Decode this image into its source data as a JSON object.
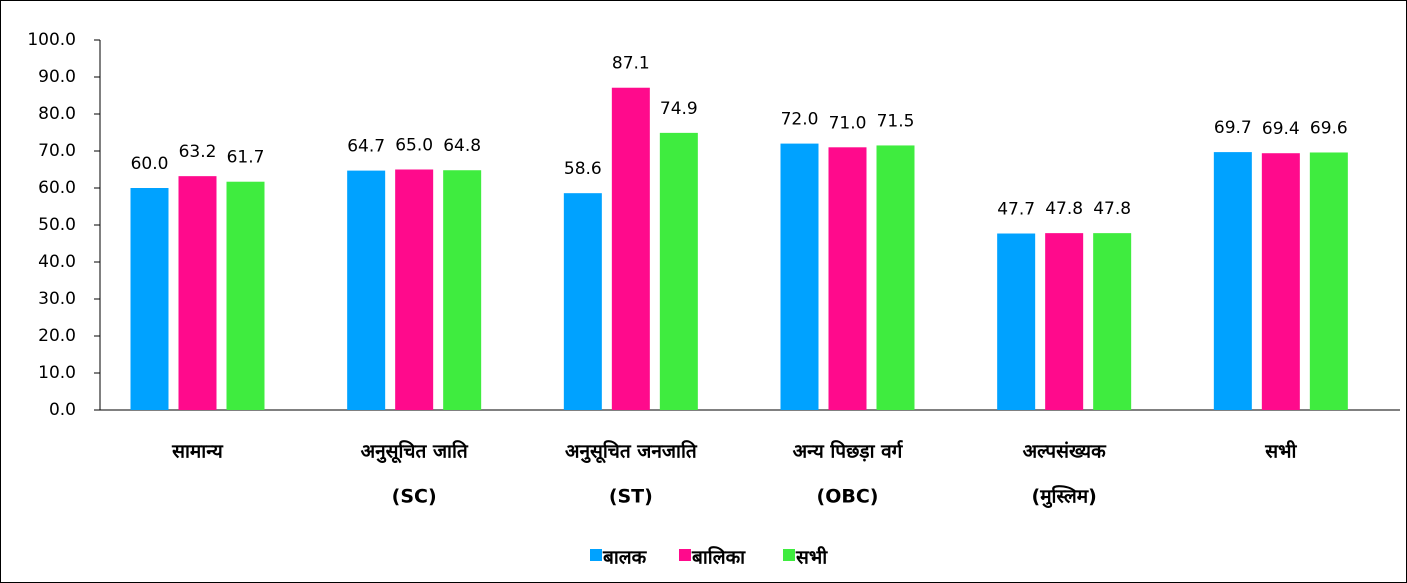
{
  "chart_data": {
    "type": "bar",
    "categories": [
      [
        "सामान्य"
      ],
      [
        "अनुसूचित जाति",
        "(SC)"
      ],
      [
        "अनुसूचित जनजाति",
        "(ST)"
      ],
      [
        "अन्य पिछड़ा वर्ग",
        "(OBC)"
      ],
      [
        "अल्पसंख्यक",
        "(मुस्लिम)"
      ],
      [
        "सभी"
      ]
    ],
    "series": [
      {
        "name": "बालक",
        "color": "#00a2ff",
        "values": [
          60.0,
          64.7,
          58.6,
          72.0,
          47.7,
          69.7
        ],
        "value_labels": [
          "60.0",
          "64.7",
          "58.6",
          "72.0",
          "47.7",
          "69.7"
        ]
      },
      {
        "name": "बालिका",
        "color": "#ff0a8c",
        "values": [
          63.2,
          65.0,
          87.1,
          71.0,
          47.8,
          69.4
        ],
        "value_labels": [
          "63.2",
          "65.0",
          "87.1",
          "71.0",
          "47.8",
          "69.4"
        ]
      },
      {
        "name": "सभी",
        "color": "#3fec3f",
        "values": [
          61.7,
          64.8,
          74.9,
          71.5,
          47.8,
          69.6
        ],
        "value_labels": [
          "61.7",
          "64.8",
          "74.9",
          "71.5",
          "47.8",
          "69.6"
        ]
      }
    ],
    "ylim": [
      0,
      100
    ],
    "yticks": [
      {
        "value": 0,
        "label": "0.0"
      },
      {
        "value": 10,
        "label": "10.0"
      },
      {
        "value": 20,
        "label": "20.0"
      },
      {
        "value": 30,
        "label": "30.0"
      },
      {
        "value": 40,
        "label": "40.0"
      },
      {
        "value": 50,
        "label": "50.0"
      },
      {
        "value": 60,
        "label": "60.0"
      },
      {
        "value": 70,
        "label": "70.0"
      },
      {
        "value": 80,
        "label": "80.0"
      },
      {
        "value": 90,
        "label": "90.0"
      },
      {
        "value": 100,
        "label": "100.0"
      }
    ],
    "grid": false,
    "legend": "bottom"
  }
}
